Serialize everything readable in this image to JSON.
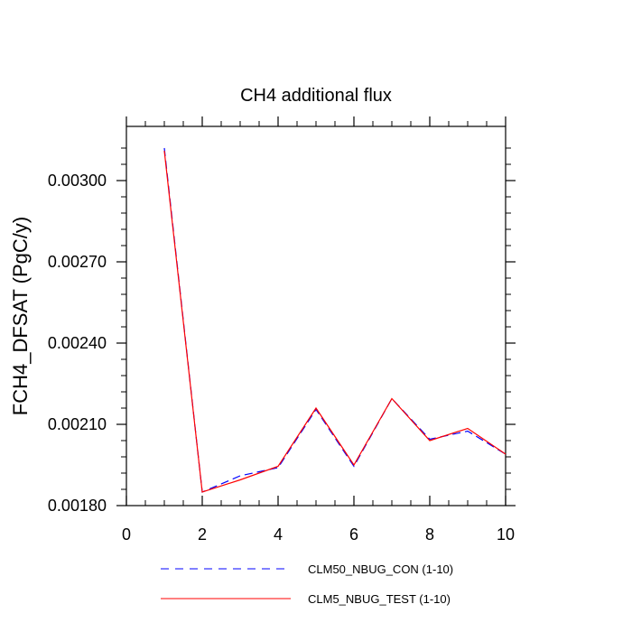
{
  "chart_data": {
    "type": "line",
    "title": "CH4 additional flux",
    "xlabel": "",
    "ylabel": "FCH4_DFSAT  (PgC/y)",
    "xlim": [
      0,
      10
    ],
    "ylim": [
      0.0018,
      0.0032
    ],
    "x_ticks": [
      0,
      2,
      4,
      6,
      8,
      10
    ],
    "y_ticks": [
      0.0018,
      0.0021,
      0.0024,
      0.0027,
      0.003
    ],
    "y_tick_labels": [
      "0.00180",
      "0.00210",
      "0.00240",
      "0.00270",
      "0.00300"
    ],
    "grid": false,
    "legend_position": "bottom",
    "series": [
      {
        "name": "CLM50_NBUG_CON (1-10)",
        "color": "#0000ff",
        "dash": "dashed",
        "x": [
          1,
          2,
          3,
          4,
          5,
          6,
          7,
          8,
          9,
          10
        ],
        "values": [
          0.00312,
          0.00185,
          0.00191,
          0.00194,
          0.002155,
          0.001945,
          0.002195,
          0.002045,
          0.002075,
          0.00199
        ]
      },
      {
        "name": "CLM5_NBUG_TEST (1-10)",
        "color": "#ff0000",
        "dash": "solid",
        "x": [
          1,
          2,
          3,
          4,
          5,
          6,
          7,
          8,
          9,
          10
        ],
        "values": [
          0.00311,
          0.00185,
          0.001895,
          0.001945,
          0.00216,
          0.00195,
          0.002195,
          0.00204,
          0.002085,
          0.00199
        ]
      }
    ]
  }
}
